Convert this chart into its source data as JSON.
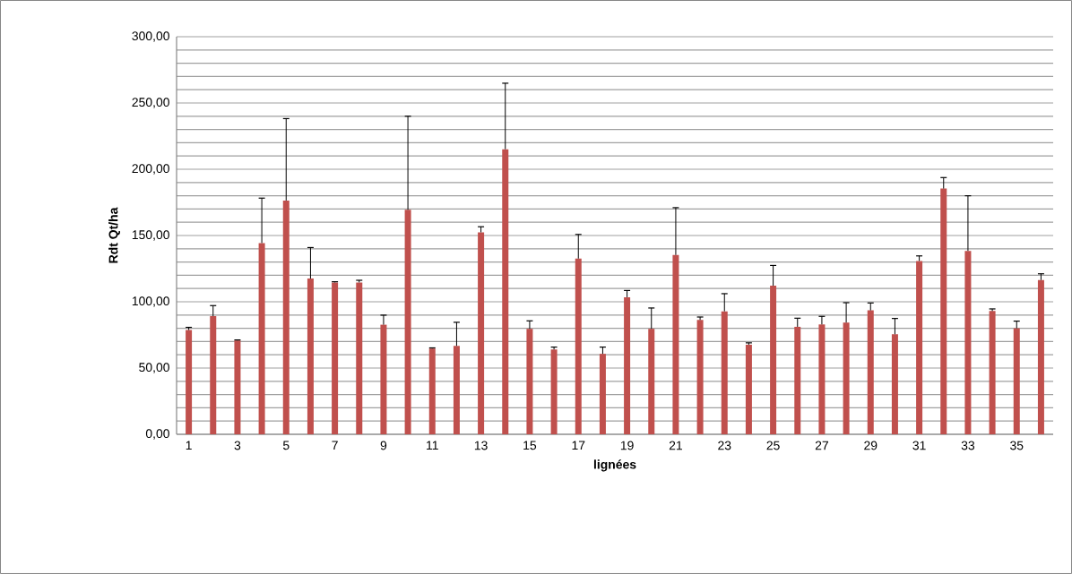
{
  "chart_data": {
    "type": "bar",
    "xlabel": "lignées",
    "ylabel": "Rdt Qt/ha",
    "categories": [
      "1",
      null,
      "3",
      null,
      "5",
      null,
      "7",
      null,
      "9",
      null,
      "11",
      null,
      "13",
      null,
      "15",
      null,
      "17",
      null,
      "19",
      null,
      "21",
      null,
      "23",
      null,
      "25",
      null,
      "27",
      null,
      "29",
      null,
      "31",
      null,
      "33",
      null,
      "35",
      null
    ],
    "values": [
      78.7,
      89.2,
      70.8,
      144.3,
      176.4,
      117.5,
      114.6,
      114.6,
      82.7,
      169.4,
      64.7,
      66.7,
      152.4,
      215.1,
      79.6,
      64.0,
      132.6,
      60.7,
      103.4,
      79.6,
      135.3,
      86.3,
      92.8,
      67.6,
      112.1,
      81.1,
      82.9,
      84.3,
      93.5,
      75.5,
      130.8,
      185.4,
      138.4,
      93.0,
      80.0,
      116.4
    ],
    "errors": [
      [
        78.7,
        80.7
      ],
      [
        89.2,
        97.1
      ],
      [
        70.8,
        71.2
      ],
      [
        144.3,
        178.2
      ],
      [
        176.4,
        238.2
      ],
      [
        117.5,
        140.9
      ],
      [
        114.6,
        115.1
      ],
      [
        114.6,
        116.2
      ],
      [
        82.7,
        89.9
      ],
      [
        169.4,
        240.0
      ],
      [
        64.7,
        65.2
      ],
      [
        66.7,
        84.5
      ],
      [
        152.4,
        156.6
      ],
      [
        215.1,
        264.9
      ],
      [
        79.6,
        85.6
      ],
      [
        64.0,
        65.8
      ],
      [
        132.6,
        150.8
      ],
      [
        60.7,
        65.8
      ],
      [
        103.4,
        108.5
      ],
      [
        79.6,
        95.3
      ],
      [
        135.3,
        171.0
      ],
      [
        86.3,
        88.5
      ],
      [
        92.8,
        106.1
      ],
      [
        67.6,
        69.0
      ],
      [
        112.1,
        127.4
      ],
      [
        81.1,
        87.6
      ],
      [
        82.9,
        89.0
      ],
      [
        84.3,
        99.3
      ],
      [
        93.5,
        99.1
      ],
      [
        75.5,
        87.4
      ],
      [
        130.8,
        134.6
      ],
      [
        185.4,
        193.7
      ],
      [
        138.4,
        180.0
      ],
      [
        93.0,
        94.6
      ],
      [
        80.0,
        85.4
      ],
      [
        116.4,
        121.1
      ]
    ],
    "color": "#c0504d",
    "ylim": [
      0,
      300
    ],
    "yticks": [
      {
        "value": 0,
        "label": "0,00"
      },
      {
        "value": 10,
        "label": null
      },
      {
        "value": 20,
        "label": null
      },
      {
        "value": 30,
        "label": null
      },
      {
        "value": 40,
        "label": null
      },
      {
        "value": 50,
        "label": "50,00"
      },
      {
        "value": 60,
        "label": null
      },
      {
        "value": 70,
        "label": null
      },
      {
        "value": 80,
        "label": null
      },
      {
        "value": 90,
        "label": null
      },
      {
        "value": 100,
        "label": "100,00"
      },
      {
        "value": 110,
        "label": null
      },
      {
        "value": 120,
        "label": null
      },
      {
        "value": 130,
        "label": null
      },
      {
        "value": 140,
        "label": null
      },
      {
        "value": 150,
        "label": "150,00"
      },
      {
        "value": 160,
        "label": null
      },
      {
        "value": 170,
        "label": null
      },
      {
        "value": 180,
        "label": null
      },
      {
        "value": 190,
        "label": null
      },
      {
        "value": 200,
        "label": "200,00"
      },
      {
        "value": 210,
        "label": null
      },
      {
        "value": 220,
        "label": null
      },
      {
        "value": 230,
        "label": null
      },
      {
        "value": 240,
        "label": null
      },
      {
        "value": 250,
        "label": "250,00"
      },
      {
        "value": 260,
        "label": null
      },
      {
        "value": 270,
        "label": null
      },
      {
        "value": 280,
        "label": null
      },
      {
        "value": 290,
        "label": null
      },
      {
        "value": 300,
        "label": "300,00"
      }
    ],
    "grid": "y"
  }
}
